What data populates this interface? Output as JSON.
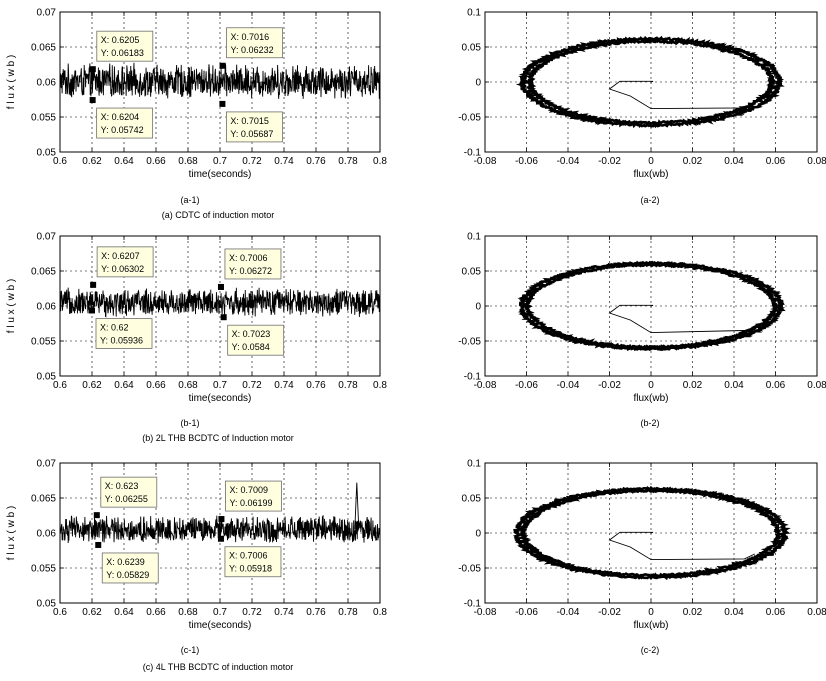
{
  "rows": [
    {
      "left_sublabel": "(a-1)",
      "right_sublabel": "(a-2)",
      "caption": "(a) CDTC of induction motor"
    },
    {
      "left_sublabel": "(b-1)",
      "right_sublabel": "(b-2)",
      "caption": "(b) 2L THB BCDTC of Induction motor"
    },
    {
      "left_sublabel": "(c-1)",
      "right_sublabel": "(c-2)",
      "caption": "(c) 4L THB BCDTC of induction motor"
    }
  ],
  "chart_data": [
    {
      "type": "line",
      "id": "a-1",
      "xlabel": "time(seconds)",
      "ylabel": "f l u x ( w b )",
      "xlim": [
        0.6,
        0.8
      ],
      "ylim": [
        0.05,
        0.07
      ],
      "xticks": [
        "0.6",
        "0.62",
        "0.64",
        "0.66",
        "0.68",
        "0.7",
        "0.72",
        "0.74",
        "0.76",
        "0.78",
        "0.8"
      ],
      "yticks": [
        "0.05",
        "0.055",
        "0.06",
        "0.065",
        "0.07"
      ],
      "grid": true,
      "signal": {
        "mean": 0.0601,
        "band_low": 0.0574,
        "band_high": 0.0627,
        "spikes": []
      },
      "datatips": [
        {
          "x": 0.6205,
          "y": 0.06183,
          "x_label": "X: 0.6205",
          "y_label": "Y: 0.06183",
          "box": "above-right"
        },
        {
          "x": 0.6204,
          "y": 0.05742,
          "x_label": "X: 0.6204",
          "y_label": "Y: 0.05742",
          "box": "below-right"
        },
        {
          "x": 0.7016,
          "y": 0.06232,
          "x_label": "X: 0.7016",
          "y_label": "Y: 0.06232",
          "box": "above-right"
        },
        {
          "x": 0.7015,
          "y": 0.05687,
          "x_label": "X: 0.7015",
          "y_label": "Y: 0.05687",
          "box": "below-right"
        }
      ]
    },
    {
      "type": "scatter",
      "id": "a-2",
      "xlabel": "flux(wb)",
      "ylabel": "",
      "xlim": [
        -0.08,
        0.08
      ],
      "ylim": [
        -0.1,
        0.1
      ],
      "xticks": [
        "-0.08",
        "-0.06",
        "-0.04",
        "-0.02",
        "0",
        "0.02",
        "0.04",
        "0.06",
        "0.08"
      ],
      "yticks": [
        "-0.1",
        "-0.05",
        "0",
        "0.05",
        "0.1"
      ],
      "grid": true,
      "locus": {
        "radius_x": 0.06,
        "radius_y": 0.06,
        "thickness": 0.003
      },
      "startup_path": [
        [
          0,
          0
        ],
        [
          0.001,
          0.001
        ],
        [
          -0.015,
          0.001
        ],
        [
          -0.02,
          -0.01
        ],
        [
          -0.01,
          -0.02
        ],
        [
          0,
          -0.038
        ],
        [
          0.045,
          -0.037
        ],
        [
          0.05,
          -0.03
        ]
      ]
    },
    {
      "type": "line",
      "id": "b-1",
      "xlabel": "time(seconds)",
      "ylabel": "f l u x ( w b )",
      "xlim": [
        0.6,
        0.8
      ],
      "ylim": [
        0.05,
        0.07
      ],
      "xticks": [
        "0.6",
        "0.62",
        "0.64",
        "0.66",
        "0.68",
        "0.7",
        "0.72",
        "0.74",
        "0.76",
        "0.78",
        "0.8"
      ],
      "yticks": [
        "0.05",
        "0.055",
        "0.06",
        "0.065",
        "0.07"
      ],
      "grid": true,
      "signal": {
        "mean": 0.0605,
        "band_low": 0.0584,
        "band_high": 0.0628,
        "spikes": []
      },
      "datatips": [
        {
          "x": 0.6207,
          "y": 0.06302,
          "x_label": "X: 0.6207",
          "y_label": "Y: 0.06302",
          "box": "above-right"
        },
        {
          "x": 0.62,
          "y": 0.05936,
          "x_label": "X: 0.62",
          "y_label": "Y: 0.05936",
          "box": "below-right"
        },
        {
          "x": 0.7006,
          "y": 0.06272,
          "x_label": "X: 0.7006",
          "y_label": "Y: 0.06272",
          "box": "above-right"
        },
        {
          "x": 0.7023,
          "y": 0.0584,
          "x_label": "X: 0.7023",
          "y_label": "Y: 0.0584",
          "box": "below-right"
        }
      ]
    },
    {
      "type": "scatter",
      "id": "b-2",
      "xlabel": "flux(wb)",
      "ylabel": "",
      "xlim": [
        -0.08,
        0.08
      ],
      "ylim": [
        -0.1,
        0.1
      ],
      "xticks": [
        "-0.08",
        "-0.06",
        "-0.04",
        "-0.02",
        "0",
        "0.02",
        "0.04",
        "0.06",
        "0.08"
      ],
      "yticks": [
        "-0.1",
        "-0.05",
        "0",
        "0.05",
        "0.1"
      ],
      "grid": true,
      "locus": {
        "radius_x": 0.061,
        "radius_y": 0.06,
        "thickness": 0.0024
      },
      "startup_path": [
        [
          0,
          0
        ],
        [
          0.001,
          0.001
        ],
        [
          -0.015,
          0.001
        ],
        [
          -0.02,
          -0.01
        ],
        [
          -0.01,
          -0.02
        ],
        [
          0,
          -0.038
        ],
        [
          0.045,
          -0.035
        ],
        [
          0.05,
          -0.03
        ]
      ]
    },
    {
      "type": "line",
      "id": "c-1",
      "xlabel": "time(seconds)",
      "ylabel": "f l u x ( w b )",
      "xlim": [
        0.6,
        0.8
      ],
      "ylim": [
        0.05,
        0.07
      ],
      "xticks": [
        "0.6",
        "0.62",
        "0.64",
        "0.66",
        "0.68",
        "0.7",
        "0.72",
        "0.74",
        "0.76",
        "0.78",
        "0.8"
      ],
      "yticks": [
        "0.05",
        "0.055",
        "0.06",
        "0.065",
        "0.07"
      ],
      "grid": true,
      "signal": {
        "mean": 0.0605,
        "band_low": 0.0585,
        "band_high": 0.0627,
        "spikes": [
          {
            "x": 0.7855,
            "y": 0.0672
          }
        ]
      },
      "datatips": [
        {
          "x": 0.623,
          "y": 0.06255,
          "x_label": "X: 0.623",
          "y_label": "Y: 0.06255",
          "box": "above-right"
        },
        {
          "x": 0.6239,
          "y": 0.05829,
          "x_label": "X: 0.6239",
          "y_label": "Y: 0.05829",
          "box": "below-right"
        },
        {
          "x": 0.7009,
          "y": 0.06199,
          "x_label": "X: 0.7009",
          "y_label": "Y: 0.06199",
          "box": "above-right"
        },
        {
          "x": 0.7006,
          "y": 0.05918,
          "x_label": "X: 0.7006",
          "y_label": "Y: 0.05918",
          "box": "below-right"
        }
      ]
    },
    {
      "type": "scatter",
      "id": "c-2",
      "xlabel": "flux(wb)",
      "ylabel": "",
      "xlim": [
        -0.08,
        0.08
      ],
      "ylim": [
        -0.1,
        0.1
      ],
      "xticks": [
        "-0.08",
        "-0.06",
        "-0.04",
        "-0.02",
        "0",
        "0.02",
        "0.04",
        "0.06",
        "0.08"
      ],
      "yticks": [
        "-0.1",
        "-0.05",
        "0",
        "0.05",
        "0.1"
      ],
      "grid": true,
      "locus": {
        "radius_x": 0.063,
        "radius_y": 0.062,
        "thickness": 0.0026
      },
      "startup_path": [
        [
          0,
          0
        ],
        [
          0.001,
          0.001
        ],
        [
          -0.015,
          0.001
        ],
        [
          -0.02,
          -0.01
        ],
        [
          -0.01,
          -0.02
        ],
        [
          0,
          -0.038
        ],
        [
          0.045,
          -0.037
        ],
        [
          0.05,
          -0.03
        ]
      ]
    }
  ]
}
